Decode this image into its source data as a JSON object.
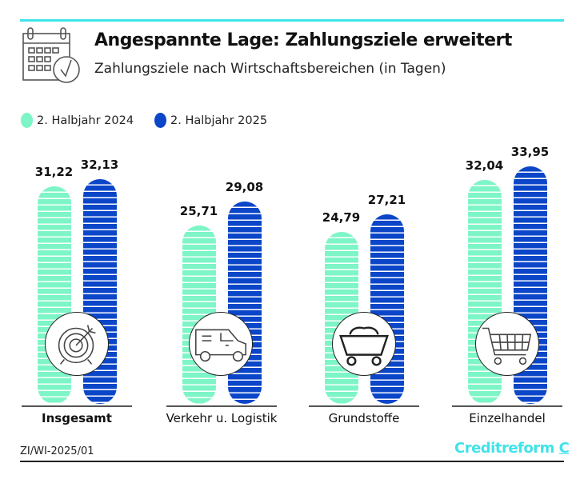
{
  "header": {
    "title": "Angespannte Lage: Zahlungsziele erweitert",
    "subtitle": "Zahlungsziele nach Wirtschaftsbereichen (in Tagen)",
    "icon": "calendar-check-icon"
  },
  "chart_data": {
    "type": "bar",
    "categories": [
      "Insgesamt",
      "Verkehr u. Logistik",
      "Grundstoffe",
      "Einzelhandel"
    ],
    "category_icons": [
      "target-icon",
      "van-icon",
      "coal-cart-icon",
      "shopping-cart-icon"
    ],
    "series": [
      {
        "name": "2. Halbjahr 2024",
        "color": "#7ef5c6",
        "values": [
          31.22,
          25.71,
          24.79,
          32.04
        ],
        "labels": [
          "31,22",
          "25,71",
          "24,79",
          "32,04"
        ]
      },
      {
        "name": "2. Halbjahr 2025",
        "color": "#0b46c8",
        "values": [
          32.13,
          29.08,
          27.21,
          33.95
        ],
        "labels": [
          "32,13",
          "29,08",
          "27,21",
          "33,95"
        ]
      }
    ],
    "legend": "top-left",
    "grid": false
  },
  "footer": {
    "source": "ZI/WI-2025/01",
    "logo": "Creditreform"
  }
}
